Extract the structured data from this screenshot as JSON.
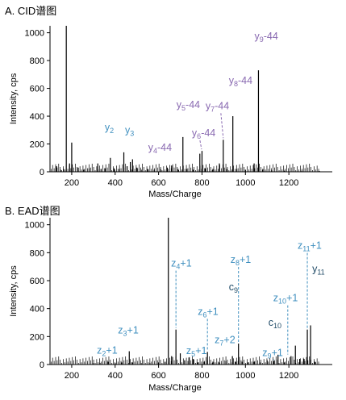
{
  "chart_data": [
    {
      "type": "bar",
      "title": "A. CID谱图",
      "xlabel": "Mass/Charge",
      "ylabel": "Intensity, cps",
      "xlim": [
        100,
        1400
      ],
      "ylim": [
        0,
        1050
      ],
      "xticks": [
        200,
        400,
        600,
        800,
        1000,
        1200
      ],
      "yticks": [
        0,
        200,
        400,
        600,
        800,
        1000
      ],
      "peaks": [
        {
          "x": 130,
          "y": 40
        },
        {
          "x": 148,
          "y": 15
        },
        {
          "x": 162,
          "y": 20
        },
        {
          "x": 175,
          "y": 1050
        },
        {
          "x": 190,
          "y": 60
        },
        {
          "x": 200,
          "y": 210
        },
        {
          "x": 230,
          "y": 30
        },
        {
          "x": 255,
          "y": 15
        },
        {
          "x": 280,
          "y": 25
        },
        {
          "x": 320,
          "y": 60
        },
        {
          "x": 335,
          "y": 20
        },
        {
          "x": 355,
          "y": 25
        },
        {
          "x": 378,
          "y": 100
        },
        {
          "x": 395,
          "y": 25
        },
        {
          "x": 420,
          "y": 20
        },
        {
          "x": 440,
          "y": 140
        },
        {
          "x": 455,
          "y": 40
        },
        {
          "x": 470,
          "y": 70
        },
        {
          "x": 480,
          "y": 90
        },
        {
          "x": 500,
          "y": 30
        },
        {
          "x": 520,
          "y": 15
        },
        {
          "x": 550,
          "y": 20
        },
        {
          "x": 580,
          "y": 15
        },
        {
          "x": 610,
          "y": 20
        },
        {
          "x": 640,
          "y": 30
        },
        {
          "x": 660,
          "y": 45
        },
        {
          "x": 690,
          "y": 20
        },
        {
          "x": 712,
          "y": 250
        },
        {
          "x": 730,
          "y": 20
        },
        {
          "x": 760,
          "y": 15
        },
        {
          "x": 790,
          "y": 130
        },
        {
          "x": 800,
          "y": 150
        },
        {
          "x": 815,
          "y": 25
        },
        {
          "x": 850,
          "y": 20
        },
        {
          "x": 880,
          "y": 60
        },
        {
          "x": 898,
          "y": 230
        },
        {
          "x": 915,
          "y": 20
        },
        {
          "x": 942,
          "y": 400
        },
        {
          "x": 960,
          "y": 20
        },
        {
          "x": 1000,
          "y": 15
        },
        {
          "x": 1040,
          "y": 60
        },
        {
          "x": 1060,
          "y": 730
        },
        {
          "x": 1080,
          "y": 20
        },
        {
          "x": 1120,
          "y": 10
        },
        {
          "x": 1180,
          "y": 8
        },
        {
          "x": 1260,
          "y": 8
        },
        {
          "x": 1340,
          "y": 6
        }
      ],
      "annotations": [
        {
          "text": "y",
          "sub": "2",
          "suffix": "",
          "color": "blue",
          "x": 378,
          "y": 100
        },
        {
          "text": "y",
          "sub": "3",
          "suffix": "",
          "color": "blue",
          "x": 475,
          "y": 90
        },
        {
          "text": "y",
          "sub": "4",
          "suffix": "-44",
          "color": "purple",
          "x": 645,
          "y": 45
        },
        {
          "text": "y",
          "sub": "5",
          "suffix": "-44",
          "color": "purple",
          "x": 712,
          "y": 250
        },
        {
          "text": "y",
          "sub": "6",
          "suffix": "-44",
          "color": "purple",
          "x": 798,
          "y": 150
        },
        {
          "text": "y",
          "sub": "7",
          "suffix": "-44",
          "color": "purple",
          "x": 898,
          "y": 230
        },
        {
          "text": "y",
          "sub": "8",
          "suffix": "-44",
          "color": "purple",
          "x": 942,
          "y": 400
        },
        {
          "text": "y",
          "sub": "9",
          "suffix": "-44",
          "color": "purple",
          "x": 1060,
          "y": 730
        }
      ]
    },
    {
      "type": "bar",
      "title": "B. EAD谱图",
      "xlabel": "Mass/Charge",
      "ylabel": "Intensity, cps",
      "xlim": [
        100,
        1400
      ],
      "ylim": [
        0,
        1050
      ],
      "xticks": [
        200,
        400,
        600,
        800,
        1000,
        1200
      ],
      "yticks": [
        0,
        200,
        400,
        600,
        800,
        1000
      ],
      "peaks": [
        {
          "x": 300,
          "y": 10
        },
        {
          "x": 330,
          "y": 12
        },
        {
          "x": 368,
          "y": 20
        },
        {
          "x": 400,
          "y": 10
        },
        {
          "x": 430,
          "y": 15
        },
        {
          "x": 465,
          "y": 95
        },
        {
          "x": 480,
          "y": 15
        },
        {
          "x": 520,
          "y": 10
        },
        {
          "x": 560,
          "y": 10
        },
        {
          "x": 600,
          "y": 15
        },
        {
          "x": 630,
          "y": 20
        },
        {
          "x": 645,
          "y": 1050
        },
        {
          "x": 660,
          "y": 60
        },
        {
          "x": 680,
          "y": 250
        },
        {
          "x": 700,
          "y": 80
        },
        {
          "x": 720,
          "y": 30
        },
        {
          "x": 740,
          "y": 50
        },
        {
          "x": 760,
          "y": 40
        },
        {
          "x": 780,
          "y": 15
        },
        {
          "x": 810,
          "y": 20
        },
        {
          "x": 825,
          "y": 90
        },
        {
          "x": 850,
          "y": 20
        },
        {
          "x": 880,
          "y": 15
        },
        {
          "x": 910,
          "y": 25
        },
        {
          "x": 940,
          "y": 60
        },
        {
          "x": 955,
          "y": 20
        },
        {
          "x": 968,
          "y": 150
        },
        {
          "x": 985,
          "y": 20
        },
        {
          "x": 1010,
          "y": 15
        },
        {
          "x": 1040,
          "y": 20
        },
        {
          "x": 1070,
          "y": 15
        },
        {
          "x": 1100,
          "y": 30
        },
        {
          "x": 1130,
          "y": 25
        },
        {
          "x": 1150,
          "y": 70
        },
        {
          "x": 1180,
          "y": 15
        },
        {
          "x": 1210,
          "y": 60
        },
        {
          "x": 1230,
          "y": 135
        },
        {
          "x": 1250,
          "y": 40
        },
        {
          "x": 1270,
          "y": 40
        },
        {
          "x": 1285,
          "y": 250
        },
        {
          "x": 1300,
          "y": 280
        },
        {
          "x": 1320,
          "y": 20
        }
      ],
      "annotations": [
        {
          "text": "z",
          "sub": "2",
          "suffix": "+1",
          "color": "blue",
          "x": 368,
          "y": 20
        },
        {
          "text": "z",
          "sub": "3",
          "suffix": "+1",
          "color": "blue",
          "x": 465,
          "y": 95
        },
        {
          "text": "z",
          "sub": "4",
          "suffix": "+1",
          "color": "blue",
          "x": 680,
          "y": 250
        },
        {
          "text": "z",
          "sub": "5",
          "suffix": "+1",
          "color": "blue",
          "x": 720,
          "y": 30
        },
        {
          "text": "z",
          "sub": "6",
          "suffix": "+1",
          "color": "blue",
          "x": 825,
          "y": 90
        },
        {
          "text": "z",
          "sub": "7",
          "suffix": "+2",
          "color": "blue",
          "x": 940,
          "y": 60
        },
        {
          "text": "z",
          "sub": "8",
          "suffix": "+1",
          "color": "blue",
          "x": 968,
          "y": 150
        },
        {
          "text": "c",
          "sub": "9",
          "suffix": "",
          "color": "dark",
          "x": 968,
          "y": 150
        },
        {
          "text": "z",
          "sub": "9",
          "suffix": "+1",
          "color": "blue",
          "x": 1130,
          "y": 25
        },
        {
          "text": "c",
          "sub": "10",
          "suffix": "",
          "color": "dark",
          "x": 1150,
          "y": 70
        },
        {
          "text": "z",
          "sub": "10",
          "suffix": "+1",
          "color": "blue",
          "x": 1195,
          "y": 60
        },
        {
          "text": "z",
          "sub": "11",
          "suffix": "+1",
          "color": "blue",
          "x": 1285,
          "y": 250
        },
        {
          "text": "y",
          "sub": "11",
          "suffix": "",
          "color": "dark",
          "x": 1300,
          "y": 280
        }
      ]
    }
  ]
}
